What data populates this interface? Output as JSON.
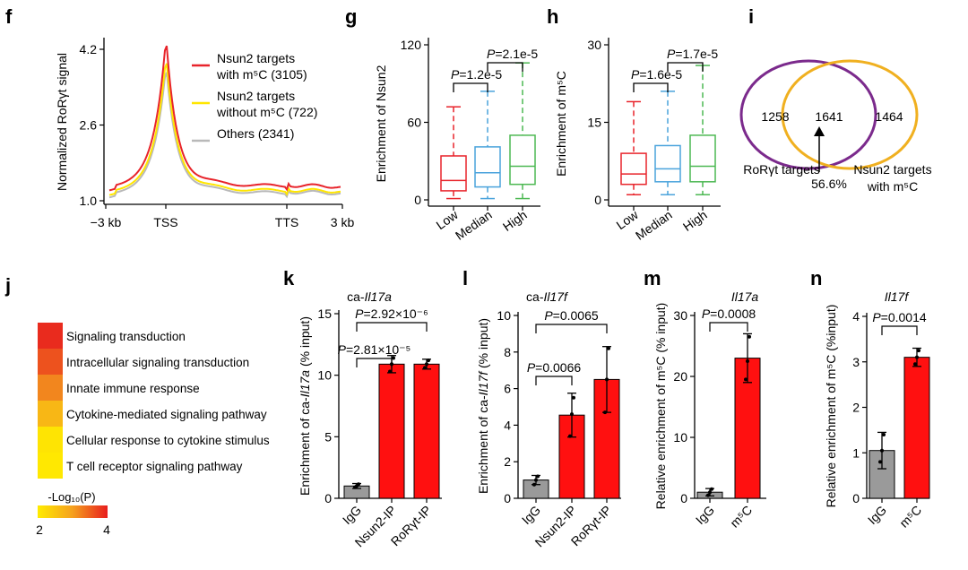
{
  "colors": {
    "red": "#e8242b",
    "yellow": "#ffe600",
    "gray": "#b9b9b9",
    "blue": "#4aa3dc",
    "green": "#4cb852",
    "purple": "#7b2a8c",
    "orange": "#f0b020",
    "bar_gray": "#9a9a9a",
    "bar_red": "#ff1010"
  },
  "panels": {
    "f": {
      "letter": "f"
    },
    "g": {
      "letter": "g"
    },
    "h": {
      "letter": "h"
    },
    "i": {
      "letter": "i"
    },
    "j": {
      "letter": "j"
    },
    "k": {
      "letter": "k"
    },
    "l": {
      "letter": "l"
    },
    "m": {
      "letter": "m"
    },
    "n": {
      "letter": "n"
    }
  },
  "chart_data": [
    {
      "panel": "f",
      "type": "line",
      "ylabel": "Normalized RoRγt signal",
      "yticks": [
        "1.0",
        "2.6",
        "4.2"
      ],
      "ylim": [
        0.9,
        4.3
      ],
      "xticks": [
        "−3 kb",
        "TSS",
        "TTS",
        "3 kb"
      ],
      "series": [
        {
          "name_line1": "Nsun2 targets",
          "name_line2": "with m⁵C (3105)",
          "color": "red",
          "peak": 4.15,
          "body": 1.3,
          "tail": 1.32
        },
        {
          "name_line1": "Nsun2 targets",
          "name_line2": "without m⁵C (722)",
          "color": "yellow",
          "peak": 3.75,
          "body": 1.2,
          "tail": 1.22
        },
        {
          "name_line1": "Others (2341)",
          "name_line2": "",
          "color": "gray",
          "peak": 3.55,
          "body": 1.15,
          "tail": 1.18
        }
      ]
    },
    {
      "panel": "g",
      "type": "box",
      "ylabel": "Enrichment of Nsun2",
      "ylim": [
        0,
        120
      ],
      "yticks": [
        "0",
        "60",
        "120"
      ],
      "categories": [
        "Low",
        "Median",
        "High"
      ],
      "boxes": [
        {
          "cat": "Low",
          "color": "red",
          "wmin": 1,
          "q1": 7,
          "median": 15,
          "q3": 34,
          "wmax": 72
        },
        {
          "cat": "Median",
          "color": "blue",
          "wmin": 1,
          "q1": 10,
          "median": 21,
          "q3": 41,
          "wmax": 84
        },
        {
          "cat": "High",
          "color": "green",
          "wmin": 1,
          "q1": 12,
          "median": 26,
          "q3": 50,
          "wmax": 106
        }
      ],
      "comparisons": [
        {
          "from": 0,
          "to": 1,
          "label": "P=1.2e-5"
        },
        {
          "from": 1,
          "to": 2,
          "label": "P=2.1e-5"
        }
      ]
    },
    {
      "panel": "h",
      "type": "box",
      "ylabel": "Enrichment of m⁵C",
      "ylim": [
        0,
        30
      ],
      "yticks": [
        "0",
        "15",
        "30"
      ],
      "categories": [
        "Low",
        "Median",
        "High"
      ],
      "boxes": [
        {
          "cat": "Low",
          "color": "red",
          "wmin": 1,
          "q1": 3,
          "median": 5,
          "q3": 9,
          "wmax": 19
        },
        {
          "cat": "Median",
          "color": "blue",
          "wmin": 1,
          "q1": 3.5,
          "median": 6,
          "q3": 10.5,
          "wmax": 21
        },
        {
          "cat": "High",
          "color": "green",
          "wmin": 1,
          "q1": 3.5,
          "median": 6.5,
          "q3": 12.5,
          "wmax": 26
        }
      ],
      "comparisons": [
        {
          "from": 0,
          "to": 1,
          "label": "P=1.6e-5"
        },
        {
          "from": 1,
          "to": 2,
          "label": "P=1.7e-5"
        }
      ]
    },
    {
      "panel": "i",
      "type": "venn",
      "left_only": "1258",
      "overlap": "1641",
      "right_only": "1464",
      "left_label": "RoRγt targets",
      "right_label_line1": "Nsun2 targets",
      "right_label_line2": "with m⁵C",
      "overlap_pct": "56.6%"
    },
    {
      "panel": "j",
      "type": "heatmap",
      "terms": [
        {
          "label": "Signaling transduction",
          "value": 3.9
        },
        {
          "label": "Intracellular signaling transduction",
          "value": 3.6
        },
        {
          "label": "Innate immune response",
          "value": 3.2
        },
        {
          "label": "Cytokine-mediated signaling pathway",
          "value": 2.7
        },
        {
          "label": "Cellular response to cytokine stimulus",
          "value": 2.1
        },
        {
          "label": "T cell receptor signaling pathway",
          "value": 2.05
        }
      ],
      "legend_title": "-Log₁₀(P)",
      "legend_min": "2",
      "legend_max": "4",
      "range": [
        2,
        4
      ]
    },
    {
      "panel": "k",
      "type": "bar",
      "title_prefix": "ca-",
      "title_gene": "Il17a",
      "ylabel_prefix": "Enrichment of ca-",
      "ylabel_gene": "Il17a",
      "ylabel_suffix": " (% input)",
      "ylim": [
        0,
        15
      ],
      "yticks": [
        "0",
        "5",
        "10",
        "15"
      ],
      "categories": [
        "IgG",
        "Nsun2-IP",
        "RoRγt-IP"
      ],
      "values": [
        1.0,
        10.9,
        10.9
      ],
      "errors": [
        0.2,
        0.7,
        0.4
      ],
      "points": [
        [
          0.9,
          1.0,
          1.15
        ],
        [
          10.3,
          10.9,
          11.4
        ],
        [
          10.6,
          10.9,
          11.2
        ]
      ],
      "bar_colors": [
        "bar_gray",
        "bar_red",
        "bar_red"
      ],
      "comparisons": [
        {
          "from": 0,
          "to": 1,
          "label": "P=2.81×10⁻⁵"
        },
        {
          "from": 0,
          "to": 2,
          "label": "P=2.92×10⁻⁶"
        }
      ]
    },
    {
      "panel": "l",
      "type": "bar",
      "title_prefix": "ca-",
      "title_gene": "Il17f",
      "ylabel_prefix": "Enrichment of ca-",
      "ylabel_gene": "Il17f",
      "ylabel_suffix": " (% input)",
      "ylim": [
        0,
        10
      ],
      "yticks": [
        "0",
        "2",
        "4",
        "6",
        "8",
        "10"
      ],
      "categories": [
        "IgG",
        "Nsun2-IP",
        "RoRγt-IP"
      ],
      "values": [
        1.0,
        4.55,
        6.5
      ],
      "errors": [
        0.25,
        1.2,
        1.8
      ],
      "points": [
        [
          0.75,
          1.0,
          1.2
        ],
        [
          3.4,
          4.6,
          5.5
        ],
        [
          4.7,
          6.5,
          8.2
        ]
      ],
      "bar_colors": [
        "bar_gray",
        "bar_red",
        "bar_red"
      ],
      "comparisons": [
        {
          "from": 0,
          "to": 1,
          "label": "P=0.0066"
        },
        {
          "from": 0,
          "to": 2,
          "label": "P=0.0065"
        }
      ]
    },
    {
      "panel": "m",
      "type": "bar",
      "title_prefix": "",
      "title_gene": "Il17a",
      "ylabel_prefix": "Relative enrichment of m⁵C (% input)",
      "ylabel_gene": "",
      "ylabel_suffix": "",
      "ylim": [
        0,
        30
      ],
      "yticks": [
        "0",
        "10",
        "20",
        "30"
      ],
      "categories": [
        "IgG",
        "m⁵C"
      ],
      "values": [
        1.0,
        23.0
      ],
      "errors": [
        0.6,
        4.0
      ],
      "points": [
        [
          0.5,
          1.0,
          1.5
        ],
        [
          19.5,
          22.5,
          26.5
        ]
      ],
      "bar_colors": [
        "bar_gray",
        "bar_red"
      ],
      "comparisons": [
        {
          "from": 0,
          "to": 1,
          "label": "P=0.0008"
        }
      ]
    },
    {
      "panel": "n",
      "type": "bar",
      "title_prefix": "",
      "title_gene": "Il17f",
      "ylabel_prefix": "Relative enrichment of m⁵C (%input)",
      "ylabel_gene": "",
      "ylabel_suffix": "",
      "ylim": [
        0,
        4
      ],
      "yticks": [
        "0",
        "1",
        "2",
        "3",
        "4"
      ],
      "categories": [
        "IgG",
        "m⁵C"
      ],
      "values": [
        1.05,
        3.1
      ],
      "errors": [
        0.4,
        0.2
      ],
      "points": [
        [
          0.8,
          1.05,
          1.4
        ],
        [
          2.95,
          3.1,
          3.25
        ]
      ],
      "bar_colors": [
        "bar_gray",
        "bar_red"
      ],
      "comparisons": [
        {
          "from": 0,
          "to": 1,
          "label": "P=0.0014"
        }
      ]
    }
  ]
}
